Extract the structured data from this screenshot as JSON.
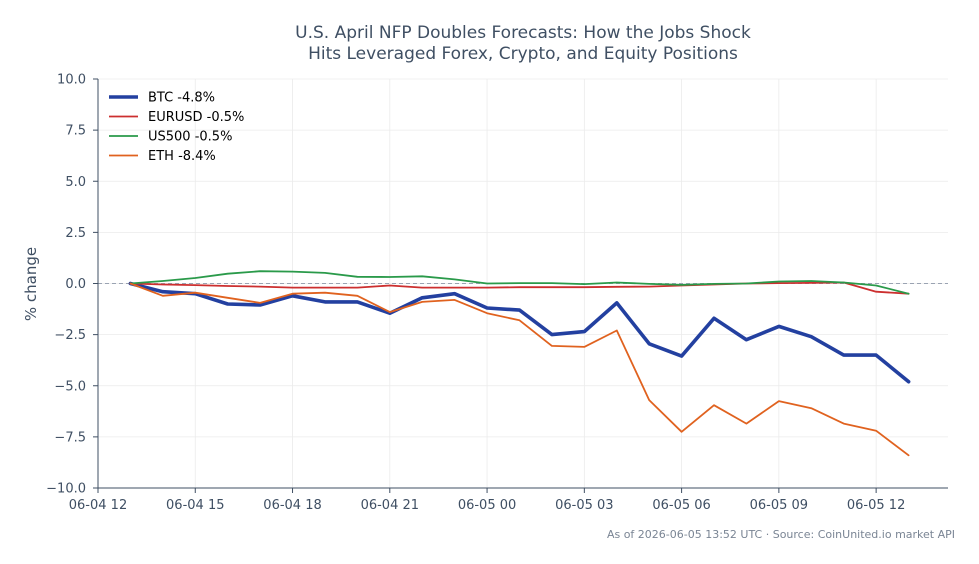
{
  "chart_data": {
    "type": "line",
    "title_lines": [
      "U.S. April NFP Doubles Forecasts: How the Jobs Shock",
      "Hits Leveraged Forex, Crypto, and Equity Positions"
    ],
    "ylabel": "% change",
    "ylim": [
      -10,
      10
    ],
    "yticks": [
      10,
      7.5,
      5,
      2.5,
      0,
      -2.5,
      -5,
      -7.5,
      -10
    ],
    "ytick_labels": [
      "10.0",
      "7.5",
      "5.0",
      "2.5",
      "0.0",
      "−2.5",
      "−5.0",
      "−7.5",
      "−10.0"
    ],
    "xlim": [
      "2026-06-04 12:00",
      "2026-06-05 14:13"
    ],
    "xticks": [
      "2026-06-04 12:00",
      "2026-06-04 15:00",
      "2026-06-04 18:00",
      "2026-06-04 21:00",
      "2026-06-05 00:00",
      "2026-06-05 03:00",
      "2026-06-05 06:00",
      "2026-06-05 09:00",
      "2026-06-05 12:00"
    ],
    "xtick_labels": [
      "06-04 12",
      "06-04 15",
      "06-04 18",
      "06-04 21",
      "06-05 00",
      "06-05 03",
      "06-05 06",
      "06-05 09",
      "06-05 12"
    ],
    "x": [
      "2026-06-04 13:00",
      "2026-06-04 14:00",
      "2026-06-04 15:00",
      "2026-06-04 16:00",
      "2026-06-04 17:00",
      "2026-06-04 18:00",
      "2026-06-04 19:00",
      "2026-06-04 20:00",
      "2026-06-04 21:00",
      "2026-06-04 22:00",
      "2026-06-04 23:00",
      "2026-06-05 00:00",
      "2026-06-05 01:00",
      "2026-06-05 02:00",
      "2026-06-05 03:00",
      "2026-06-05 04:00",
      "2026-06-05 05:00",
      "2026-06-05 06:00",
      "2026-06-05 07:00",
      "2026-06-05 08:00",
      "2026-06-05 09:00",
      "2026-06-05 10:00",
      "2026-06-05 11:00",
      "2026-06-05 12:00",
      "2026-06-05 13:00"
    ],
    "series": [
      {
        "name": "BTC -4.8%",
        "color": "#2340a0",
        "width": 3.6,
        "values": [
          0.0,
          -0.4,
          -0.5,
          -1.0,
          -1.05,
          -0.6,
          -0.9,
          -0.9,
          -1.45,
          -0.7,
          -0.5,
          -1.2,
          -1.3,
          -2.5,
          -2.35,
          -0.95,
          -2.95,
          -3.55,
          -1.7,
          -2.75,
          -2.1,
          -2.6,
          -3.5,
          -3.5,
          -4.8
        ]
      },
      {
        "name": "EURUSD -0.5%",
        "color": "#cc2f2f",
        "width": 1.8,
        "values": [
          0.0,
          -0.05,
          -0.08,
          -0.12,
          -0.15,
          -0.2,
          -0.2,
          -0.2,
          -0.1,
          -0.2,
          -0.2,
          -0.2,
          -0.18,
          -0.18,
          -0.18,
          -0.16,
          -0.15,
          -0.1,
          -0.05,
          0.0,
          0.02,
          0.03,
          0.05,
          -0.4,
          -0.5
        ]
      },
      {
        "name": "US500 -0.5%",
        "color": "#2a9a4a",
        "width": 1.8,
        "values": [
          0.0,
          0.12,
          0.27,
          0.48,
          0.6,
          0.58,
          0.52,
          0.33,
          0.32,
          0.35,
          0.2,
          0.0,
          0.02,
          0.02,
          -0.03,
          0.05,
          -0.02,
          -0.07,
          -0.02,
          0.0,
          0.1,
          0.12,
          0.05,
          -0.1,
          -0.5
        ]
      },
      {
        "name": "ETH -8.4%",
        "color": "#e0621f",
        "width": 1.8,
        "values": [
          0.0,
          -0.6,
          -0.45,
          -0.7,
          -0.95,
          -0.5,
          -0.45,
          -0.6,
          -1.4,
          -0.9,
          -0.8,
          -1.45,
          -1.8,
          -3.05,
          -3.1,
          -2.3,
          -5.7,
          -7.25,
          -5.95,
          -6.85,
          -5.75,
          -6.1,
          -6.85,
          -7.2,
          -8.4
        ]
      }
    ],
    "zero_line": true,
    "grid": true,
    "legend_position": "top-left",
    "footnote": "As of 2026-06-05 13:52 UTC · Source: CoinUnited.io market API"
  }
}
